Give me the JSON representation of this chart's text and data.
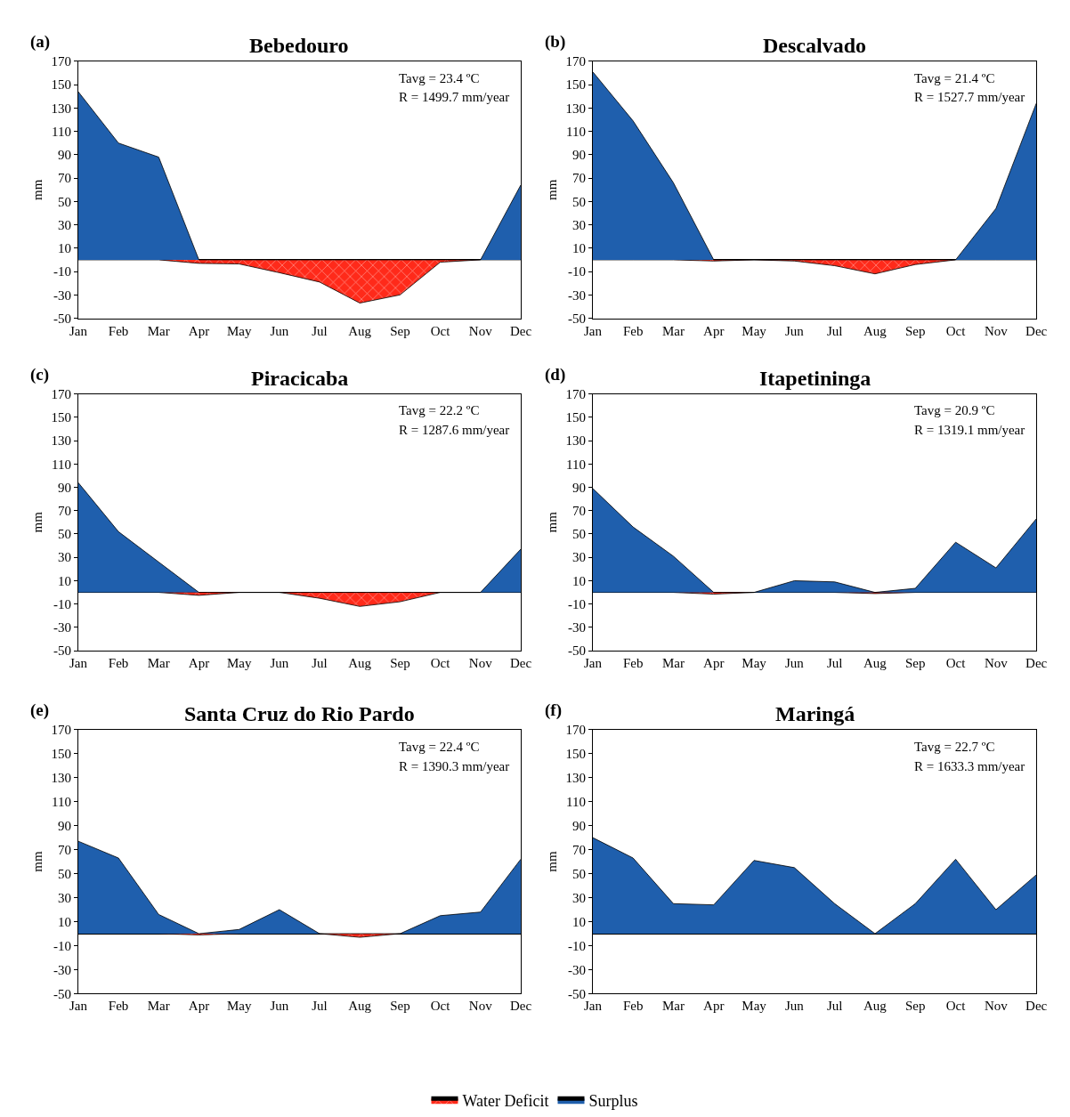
{
  "chart_data": [
    {
      "type": "area",
      "title": "Bebedouro",
      "ylabel": "mm",
      "categories": [
        "Jan",
        "Feb",
        "Mar",
        "Apr",
        "May",
        "Jun",
        "Jul",
        "Aug",
        "Sep",
        "Oct",
        "Nov",
        "Dec"
      ],
      "ylim": [
        -50,
        170
      ],
      "yticks": [
        -50,
        -30,
        -10,
        10,
        30,
        50,
        70,
        90,
        110,
        130,
        150,
        170
      ],
      "legend": "bottom",
      "annotations": [
        "(a)",
        "Tavg = 23.4 ºC",
        "R = 1499.7 mm/year"
      ],
      "series": [
        {
          "name": "Water Deficit",
          "color": "#ff2a1a",
          "values": [
            0,
            0,
            0,
            -3,
            -3.5,
            -11,
            -19,
            -37,
            -30,
            -2,
            0,
            0
          ]
        },
        {
          "name": "Surplus",
          "color": "#1f5fad",
          "values": [
            144,
            100,
            88,
            0,
            0,
            0,
            0,
            0,
            0,
            0,
            0,
            64
          ]
        }
      ]
    },
    {
      "type": "area",
      "title": "Descalvado",
      "ylabel": "mm",
      "categories": [
        "Jan",
        "Feb",
        "Mar",
        "Apr",
        "May",
        "Jun",
        "Jul",
        "Aug",
        "Sep",
        "Oct",
        "Nov",
        "Dec"
      ],
      "ylim": [
        -50,
        170
      ],
      "yticks": [
        -50,
        -30,
        -10,
        10,
        30,
        50,
        70,
        90,
        110,
        130,
        150,
        170
      ],
      "annotations": [
        "(b)",
        "Tavg = 21.4 ºC",
        "R = 1527.7 mm/year"
      ],
      "series": [
        {
          "color": "#ff2a1a",
          "values": [
            0,
            0,
            0,
            -1,
            0,
            -1,
            -5,
            -12,
            -4,
            0,
            0,
            0
          ]
        },
        {
          "color": "#1f5fad",
          "values": [
            161,
            119,
            66,
            0,
            0,
            0,
            0,
            0,
            0,
            0,
            44,
            134
          ]
        }
      ]
    },
    {
      "type": "area",
      "title": "Piracicaba",
      "ylabel": "mm",
      "categories": [
        "Jan",
        "Feb",
        "Mar",
        "Apr",
        "May",
        "Jun",
        "Jul",
        "Aug",
        "Sep",
        "Oct",
        "Nov",
        "Dec"
      ],
      "ylim": [
        -50,
        170
      ],
      "yticks": [
        -50,
        -30,
        -10,
        10,
        30,
        50,
        70,
        90,
        110,
        130,
        150,
        170
      ],
      "annotations": [
        "(c)",
        "Tavg = 22.2 ºC",
        "R = 1287.6 mm/year"
      ],
      "series": [
        {
          "color": "#ff2a1a",
          "values": [
            0,
            0,
            0,
            -2.5,
            0,
            0,
            -5,
            -12,
            -8,
            0,
            0,
            0
          ]
        },
        {
          "color": "#1f5fad",
          "values": [
            94,
            52,
            26,
            0,
            0,
            0,
            0,
            0,
            0,
            0,
            0,
            37
          ]
        }
      ]
    },
    {
      "type": "area",
      "title": "Itapetininga",
      "ylabel": "mm",
      "categories": [
        "Jan",
        "Feb",
        "Mar",
        "Apr",
        "May",
        "Jun",
        "Jul",
        "Aug",
        "Sep",
        "Oct",
        "Nov",
        "Dec"
      ],
      "ylim": [
        -50,
        170
      ],
      "yticks": [
        -50,
        -30,
        -10,
        10,
        30,
        50,
        70,
        90,
        110,
        130,
        150,
        170
      ],
      "annotations": [
        "(d)",
        "Tavg = 20.9 ºC",
        "R = 1319.1 mm/year"
      ],
      "series": [
        {
          "color": "#ff2a1a",
          "values": [
            0,
            0,
            0,
            -1.5,
            0,
            0,
            0,
            -1,
            0,
            0,
            0,
            0
          ]
        },
        {
          "color": "#1f5fad",
          "values": [
            89,
            56,
            31,
            0,
            0,
            10,
            9,
            0,
            3.5,
            43,
            21,
            63
          ]
        }
      ]
    },
    {
      "type": "area",
      "title": "Santa Cruz do Rio Pardo",
      "ylabel": "mm",
      "categories": [
        "Jan",
        "Feb",
        "Mar",
        "Apr",
        "May",
        "Jun",
        "Jul",
        "Aug",
        "Sep",
        "Oct",
        "Nov",
        "Dec"
      ],
      "ylim": [
        -50,
        170
      ],
      "yticks": [
        -50,
        -30,
        -10,
        10,
        30,
        50,
        70,
        90,
        110,
        130,
        150,
        170
      ],
      "annotations": [
        "(e)",
        "Tavg = 22.4 ºC",
        "R = 1390.3 mm/year"
      ],
      "series": [
        {
          "color": "#ff2a1a",
          "values": [
            0,
            0,
            0,
            -1,
            0,
            0,
            0,
            -3,
            0,
            0,
            0,
            0
          ]
        },
        {
          "color": "#1f5fad",
          "values": [
            77,
            63,
            16,
            0,
            3.5,
            20,
            0,
            0,
            0,
            15,
            18,
            62
          ]
        }
      ]
    },
    {
      "type": "area",
      "title": "Maringá",
      "ylabel": "mm",
      "categories": [
        "Jan",
        "Feb",
        "Mar",
        "Apr",
        "May",
        "Jun",
        "Jul",
        "Aug",
        "Sep",
        "Oct",
        "Nov",
        "Dec"
      ],
      "ylim": [
        -50,
        170
      ],
      "yticks": [
        -50,
        -30,
        -10,
        10,
        30,
        50,
        70,
        90,
        110,
        130,
        150,
        170
      ],
      "annotations": [
        "(f)",
        "Tavg = 22.7 ºC",
        "R = 1633.3 mm/year"
      ],
      "series": [
        {
          "color": "#1f5fad",
          "values": [
            80,
            63,
            25,
            24,
            61,
            55,
            25,
            0,
            25,
            62,
            20,
            49
          ]
        }
      ]
    }
  ]
}
